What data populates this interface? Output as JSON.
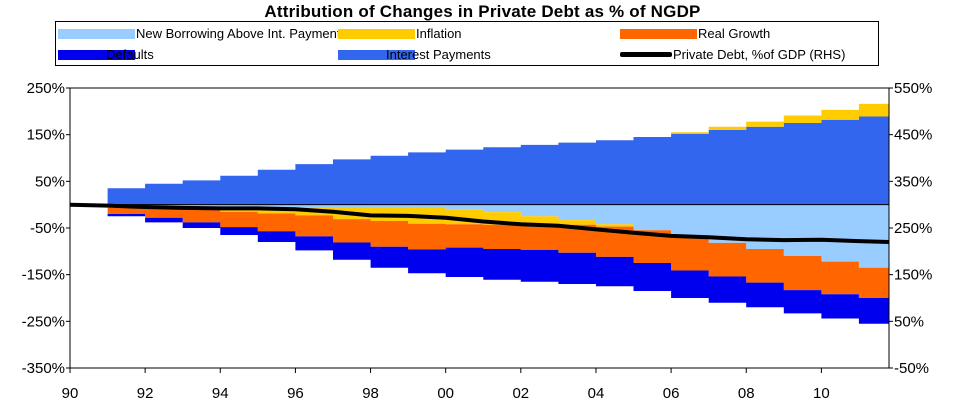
{
  "chart_data": {
    "type": "area",
    "title": "Attribution of Changes in Private Debt as % of NGDP",
    "legend": [
      {
        "key": "new_borrowing",
        "label": "New Borrowing Above Int. Payments",
        "color": "#99ccff"
      },
      {
        "key": "inflation",
        "label": "Inflation",
        "color": "#ffcc00"
      },
      {
        "key": "real_growth",
        "label": "Real Growth",
        "color": "#ff6600"
      },
      {
        "key": "defaults",
        "label": "Defaults",
        "color": "#0000ee"
      },
      {
        "key": "interest",
        "label": "Interest Payments",
        "color": "#3366ee"
      },
      {
        "key": "debt",
        "label": "Private Debt, %of GDP (RHS)",
        "color": "#000000"
      }
    ],
    "x_ticks": [
      "90",
      "92",
      "94",
      "96",
      "98",
      "00",
      "02",
      "04",
      "06",
      "08",
      "10"
    ],
    "x_tick_years": [
      1990,
      1992,
      1994,
      1996,
      1998,
      2000,
      2002,
      2004,
      2006,
      2008,
      2010
    ],
    "x_range": [
      1990,
      2011.8
    ],
    "y_left": {
      "range": [
        -350,
        250
      ],
      "ticks": [
        250,
        150,
        50,
        -50,
        -150,
        -250,
        -350
      ],
      "tick_labels": [
        "250%",
        "150%",
        "50%",
        "-50%",
        "-150%",
        "-250%",
        "-350%"
      ]
    },
    "y_right": {
      "range": [
        -50,
        550
      ],
      "ticks": [
        550,
        450,
        350,
        250,
        150,
        50,
        -50
      ],
      "tick_labels": [
        "550%",
        "450%",
        "350%",
        "250%",
        "150%",
        "50%",
        "-50%"
      ]
    },
    "x": [
      1990,
      1991,
      1992,
      1993,
      1994,
      1995,
      1996,
      1997,
      1998,
      1999,
      2000,
      2001,
      2002,
      2003,
      2004,
      2005,
      2006,
      2007,
      2008,
      2009,
      2010,
      2011,
      2011.8
    ],
    "series": [
      {
        "name": "Interest Payments",
        "key": "interest",
        "values": [
          0,
          35,
          45,
          52,
          62,
          75,
          87,
          97,
          105,
          112,
          118,
          123,
          128,
          133,
          138,
          145,
          152,
          160,
          167,
          175,
          182,
          189,
          195
        ]
      },
      {
        "name": "Inflation (positive)",
        "key": "inflation_pos",
        "values": [
          0,
          0,
          0,
          0,
          0,
          0,
          0,
          0,
          0,
          0,
          0,
          0,
          0,
          0,
          0,
          0,
          3,
          7,
          11,
          16,
          21,
          27,
          33
        ]
      },
      {
        "name": "New Borrowing Above Int. Payments",
        "key": "new_borrowing",
        "values": [
          0,
          -5,
          -5,
          -5,
          -5,
          -5,
          -5,
          -6,
          -5,
          -6,
          -10,
          -16,
          -25,
          -33,
          -42,
          -55,
          -70,
          -82,
          -95,
          -110,
          -122,
          -135,
          -145
        ]
      },
      {
        "name": "Inflation (negative)",
        "key": "inflation_neg",
        "values": [
          0,
          -2,
          -3,
          -6,
          -10,
          -14,
          -18,
          -25,
          -30,
          -35,
          -32,
          -27,
          -17,
          -10,
          -5,
          0,
          0,
          0,
          0,
          0,
          0,
          0,
          0
        ]
      },
      {
        "name": "Real Growth",
        "key": "real_growth",
        "values": [
          0,
          -13,
          -20,
          -27,
          -33,
          -38,
          -45,
          -50,
          -55,
          -55,
          -50,
          -52,
          -55,
          -60,
          -65,
          -70,
          -71,
          -72,
          -72,
          -73,
          -70,
          -65,
          -60
        ]
      },
      {
        "name": "Defaults",
        "key": "defaults",
        "values": [
          0,
          -5,
          -10,
          -12,
          -17,
          -23,
          -30,
          -37,
          -45,
          -51,
          -63,
          -66,
          -68,
          -67,
          -63,
          -60,
          -59,
          -56,
          -53,
          -50,
          -52,
          -55,
          -70
        ]
      },
      {
        "name": "Private Debt, %of GDP (RHS)",
        "key": "debt",
        "axis": "right",
        "values": [
          300,
          298,
          295,
          293,
          292,
          292,
          290,
          285,
          277,
          276,
          272,
          264,
          258,
          255,
          247,
          240,
          233,
          230,
          226,
          224,
          225,
          222,
          220
        ]
      }
    ]
  }
}
